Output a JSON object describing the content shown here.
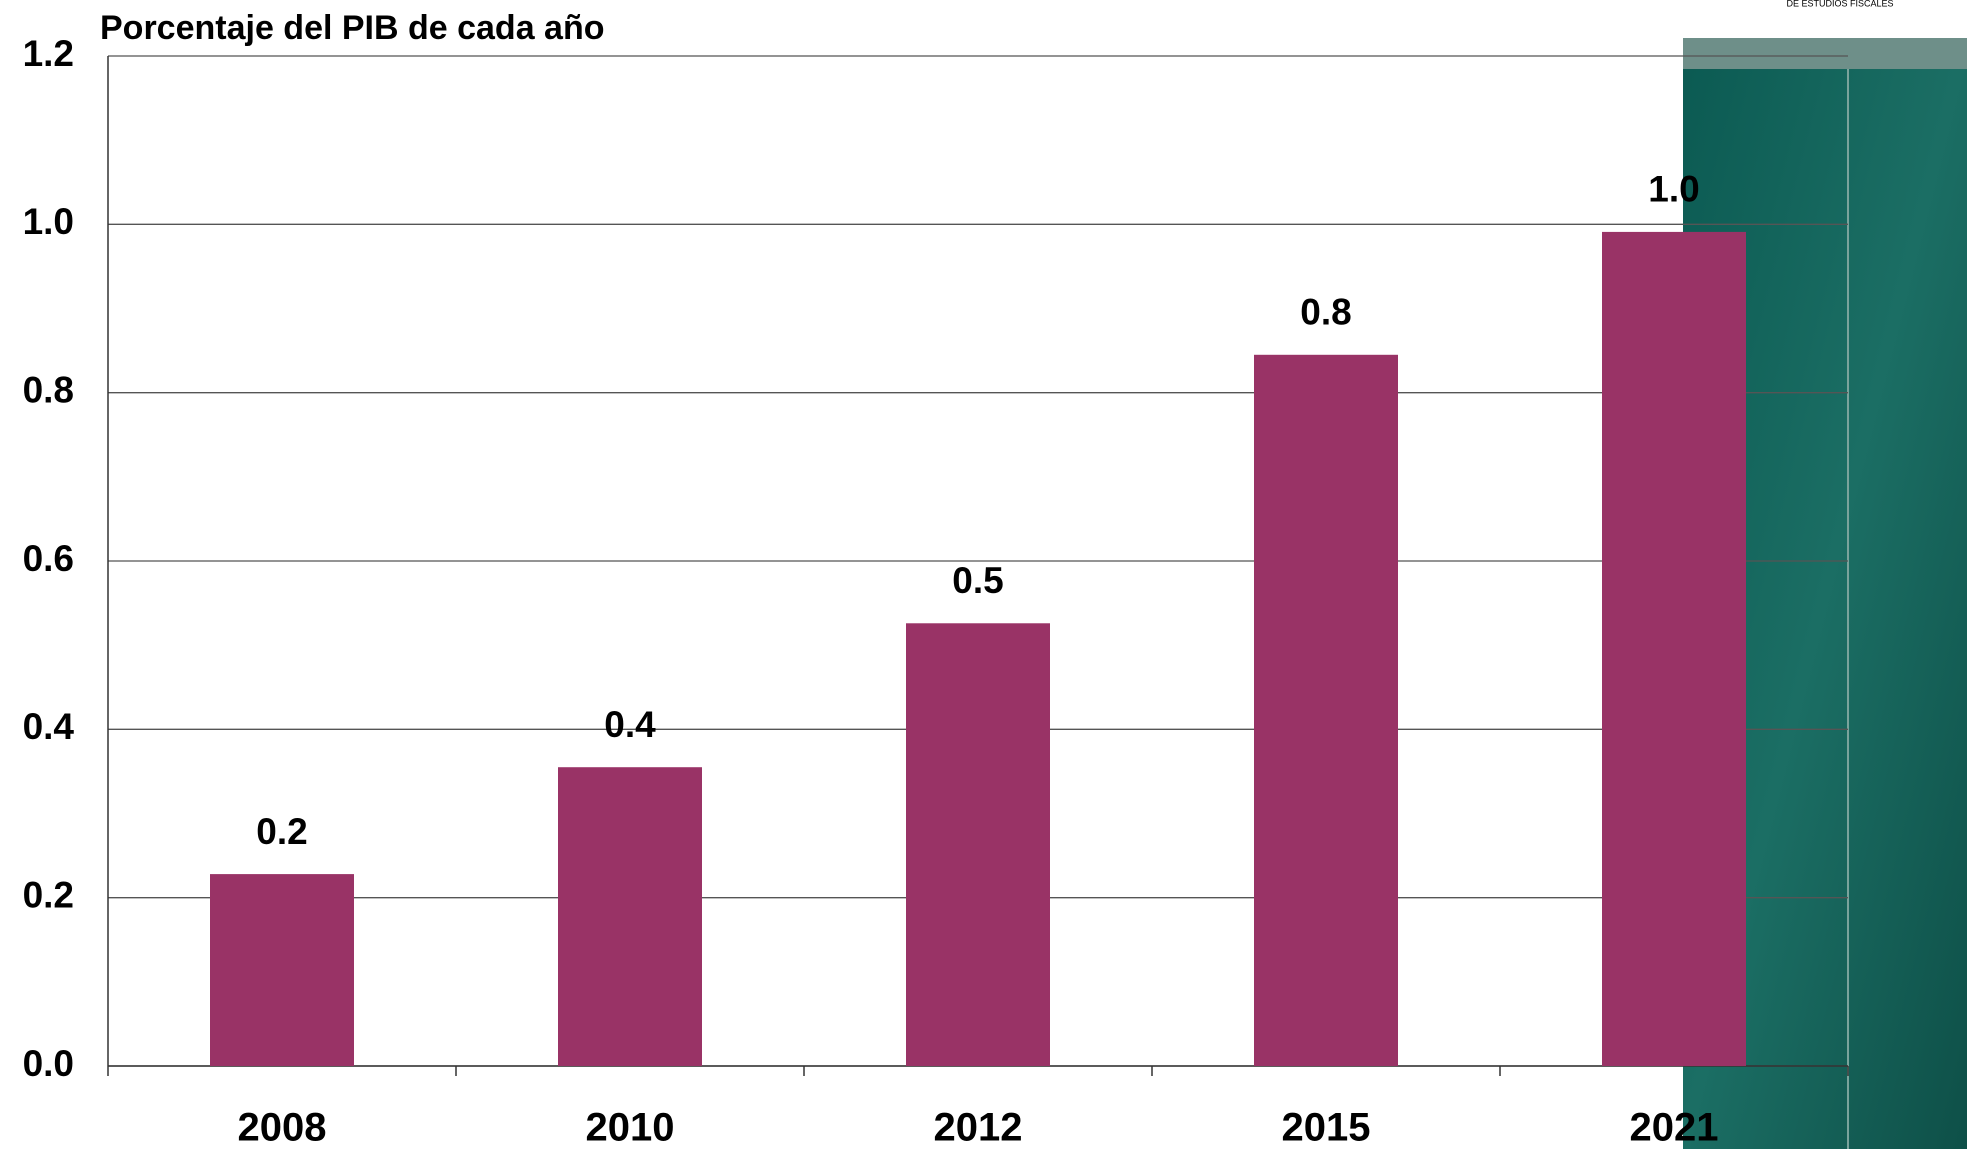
{
  "chart_data": {
    "type": "bar",
    "title": "Porcentaje del PIB de cada año",
    "annotation": "DE ESTUDIOS FISCALES",
    "categories": [
      "2008",
      "2010",
      "2012",
      "2015",
      "2021"
    ],
    "values": [
      0.228,
      0.355,
      0.526,
      0.845,
      0.991
    ],
    "value_labels": [
      "0.2",
      "0.4",
      "0.5",
      "0.8",
      "1.0"
    ],
    "color": "#993366",
    "ylim": [
      0,
      1.2
    ],
    "yticks": [
      {
        "value": 0,
        "label": "0.0"
      },
      0.2,
      0.4,
      0.6,
      0.8,
      {
        "value": 1,
        "label": "1.0"
      },
      1.2
    ],
    "grid": true
  }
}
